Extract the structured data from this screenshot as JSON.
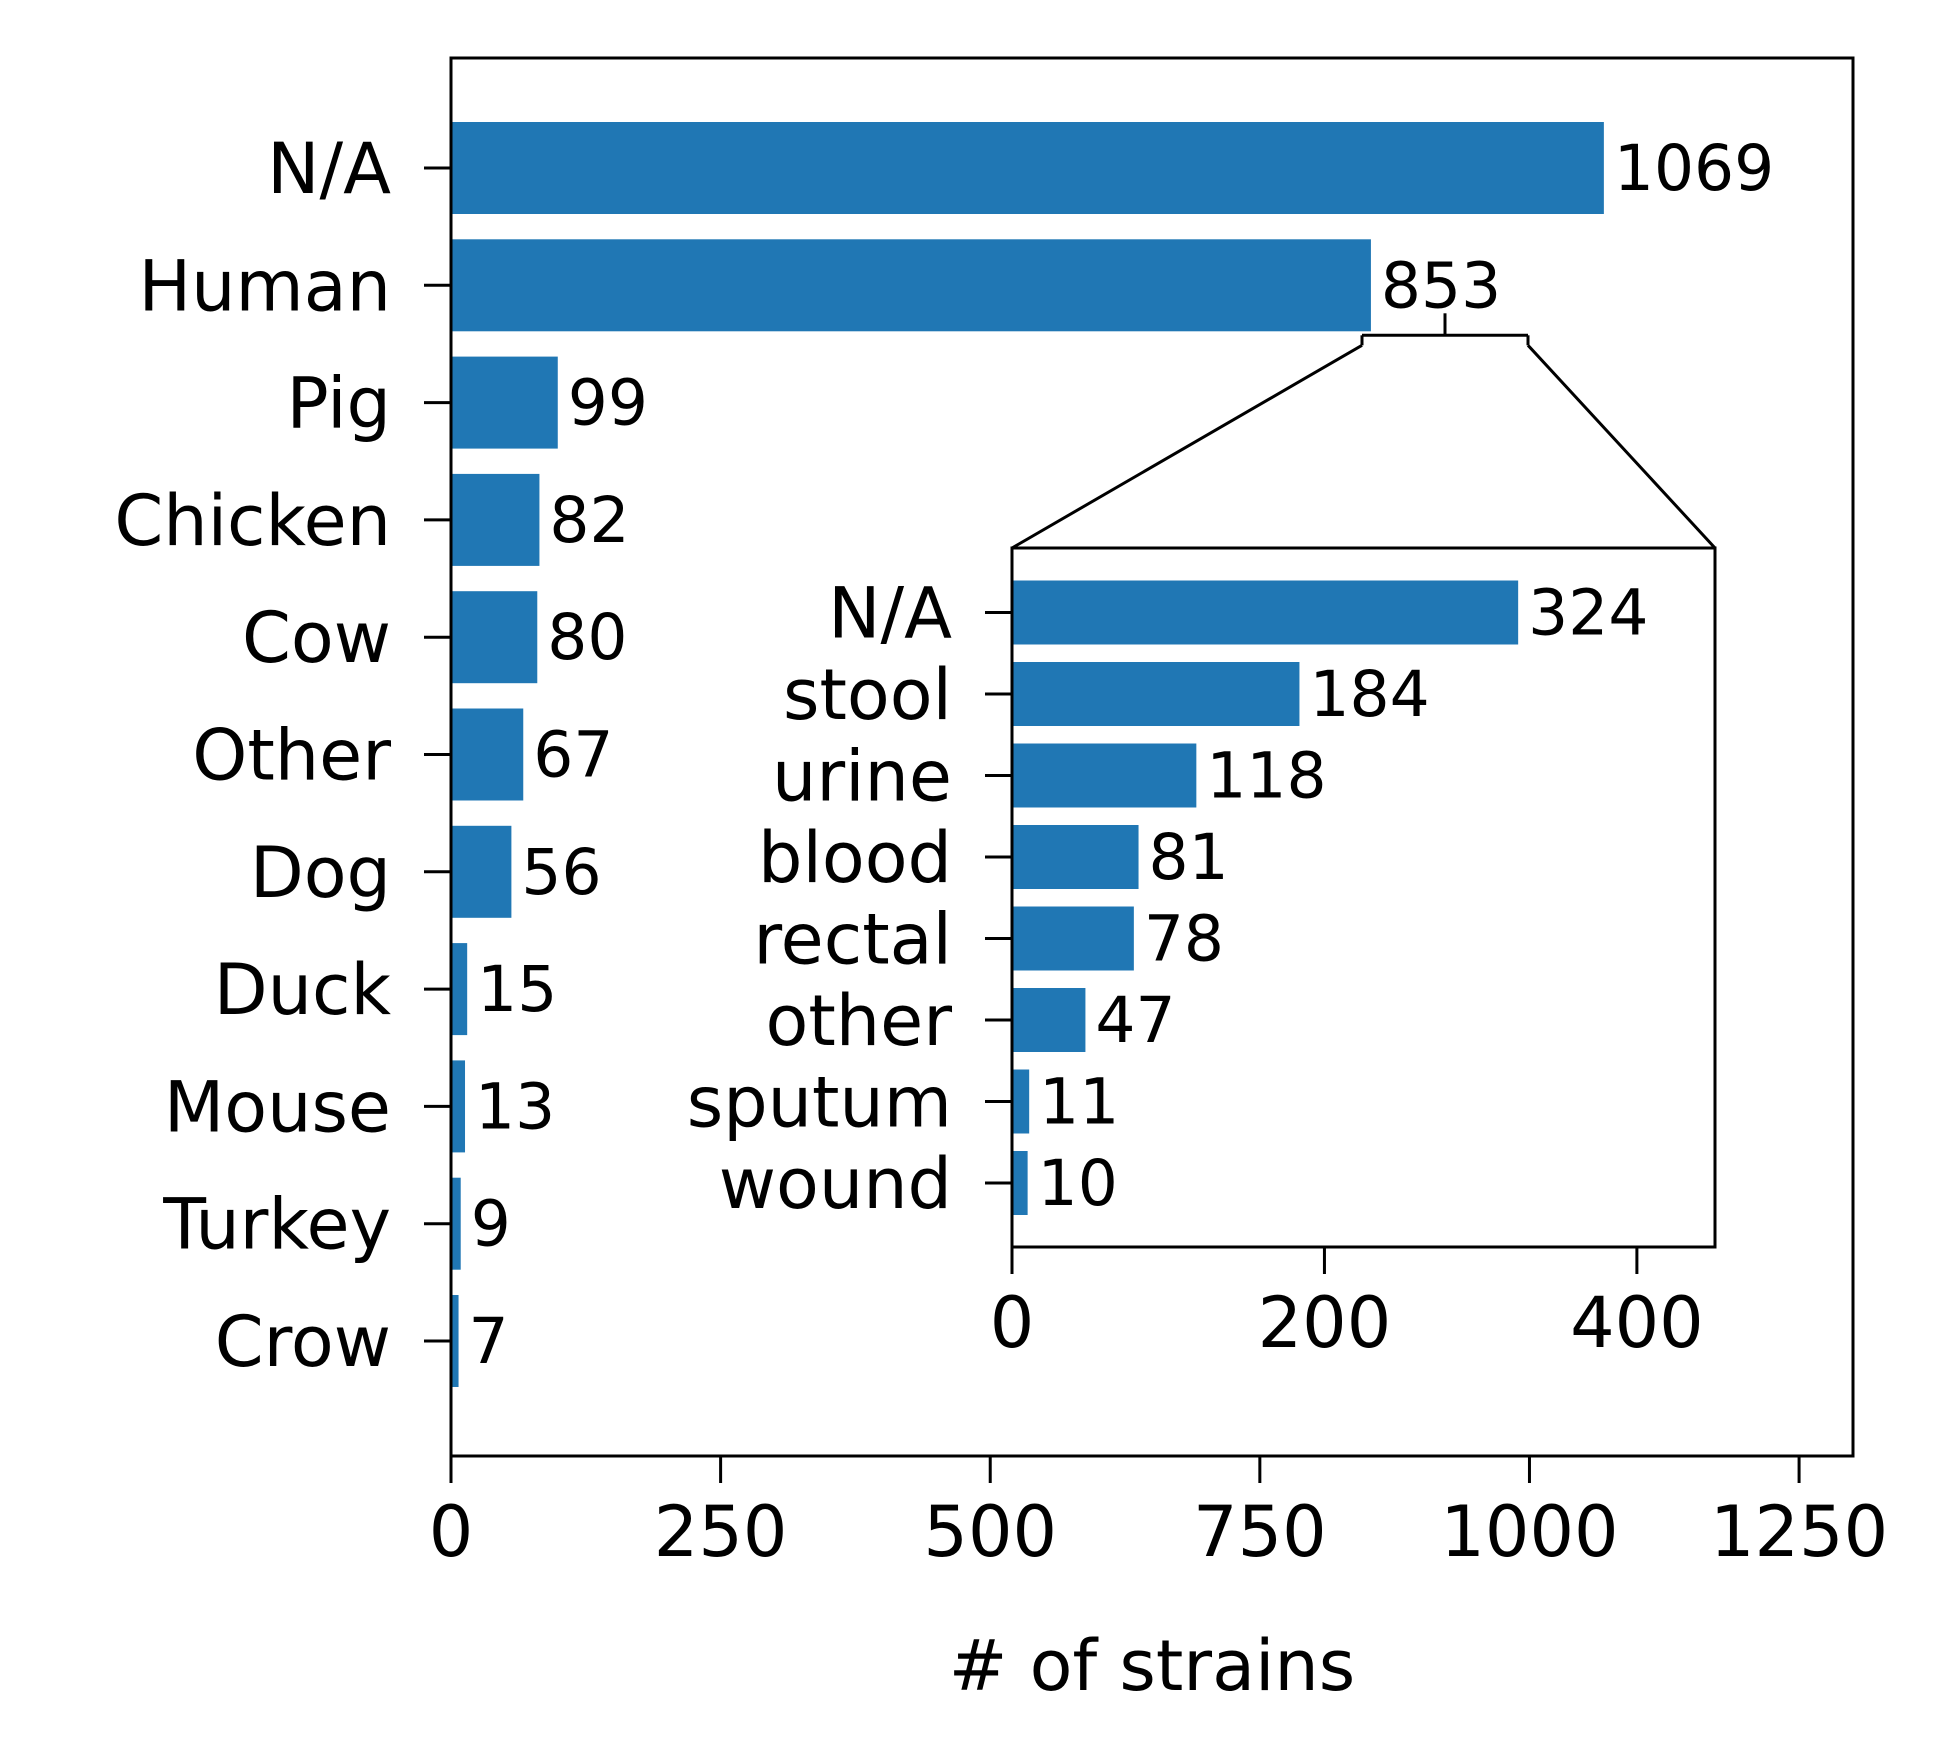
{
  "chart_data": [
    {
      "type": "bar",
      "orientation": "horizontal",
      "categories": [
        "N/A",
        "Human",
        "Pig",
        "Chicken",
        "Cow",
        "Other",
        "Dog",
        "Duck",
        "Mouse",
        "Turkey",
        "Crow"
      ],
      "values": [
        1069,
        853,
        99,
        82,
        80,
        67,
        56,
        15,
        13,
        9,
        7
      ],
      "value_labels": [
        "1069",
        "853",
        "99",
        "82",
        "80",
        "67",
        "56",
        "15",
        "13",
        "9",
        "7"
      ],
      "xlabel": "# of strains",
      "xlim": [
        0,
        1300
      ],
      "xticks": [
        0,
        250,
        500,
        750,
        1000,
        1250
      ],
      "xtick_labels": [
        "0",
        "250",
        "500",
        "750",
        "1000",
        "1250"
      ],
      "bar_color": "#2077b4",
      "grid": false
    },
    {
      "type": "bar",
      "orientation": "horizontal",
      "inset_of": "Human",
      "categories": [
        "N/A",
        "stool",
        "urine",
        "blood",
        "rectal",
        "other",
        "sputum",
        "wound"
      ],
      "values": [
        324,
        184,
        118,
        81,
        78,
        47,
        11,
        10
      ],
      "value_labels": [
        "324",
        "184",
        "118",
        "81",
        "78",
        "47",
        "11",
        "10"
      ],
      "xlim": [
        0,
        450
      ],
      "xticks": [
        0,
        200,
        400
      ],
      "xtick_labels": [
        "0",
        "200",
        "400"
      ],
      "bar_color": "#2077b4",
      "grid": false
    }
  ]
}
